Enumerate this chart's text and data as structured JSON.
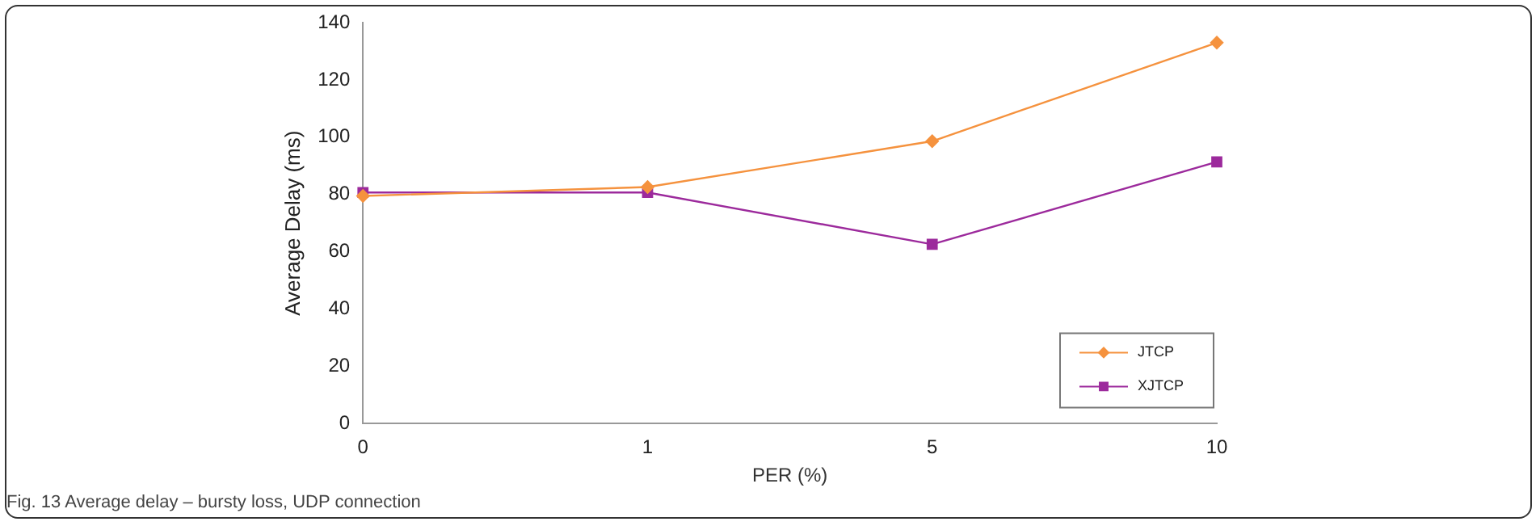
{
  "chart_data": {
    "type": "line",
    "xlabel": "PER (%)",
    "ylabel": "Average Delay (ms)",
    "categories": [
      "0",
      "1",
      "5",
      "10"
    ],
    "series": [
      {
        "name": "JTCP",
        "color": "#f5923e",
        "marker": "diamond",
        "values": [
          79.5,
          82.6,
          98.6,
          133
        ]
      },
      {
        "name": "XJTCP",
        "color": "#9c2a9c",
        "marker": "square",
        "values": [
          80.7,
          80.7,
          62.6,
          91.4
        ]
      }
    ],
    "ylim": [
      0,
      140
    ],
    "yticks": [
      0,
      20,
      40,
      60,
      80,
      100,
      120,
      140
    ],
    "grid": false,
    "legend": "bottom right",
    "annotations": [
      "Fig. 13 Average delay – bursty loss, UDP connection"
    ]
  }
}
